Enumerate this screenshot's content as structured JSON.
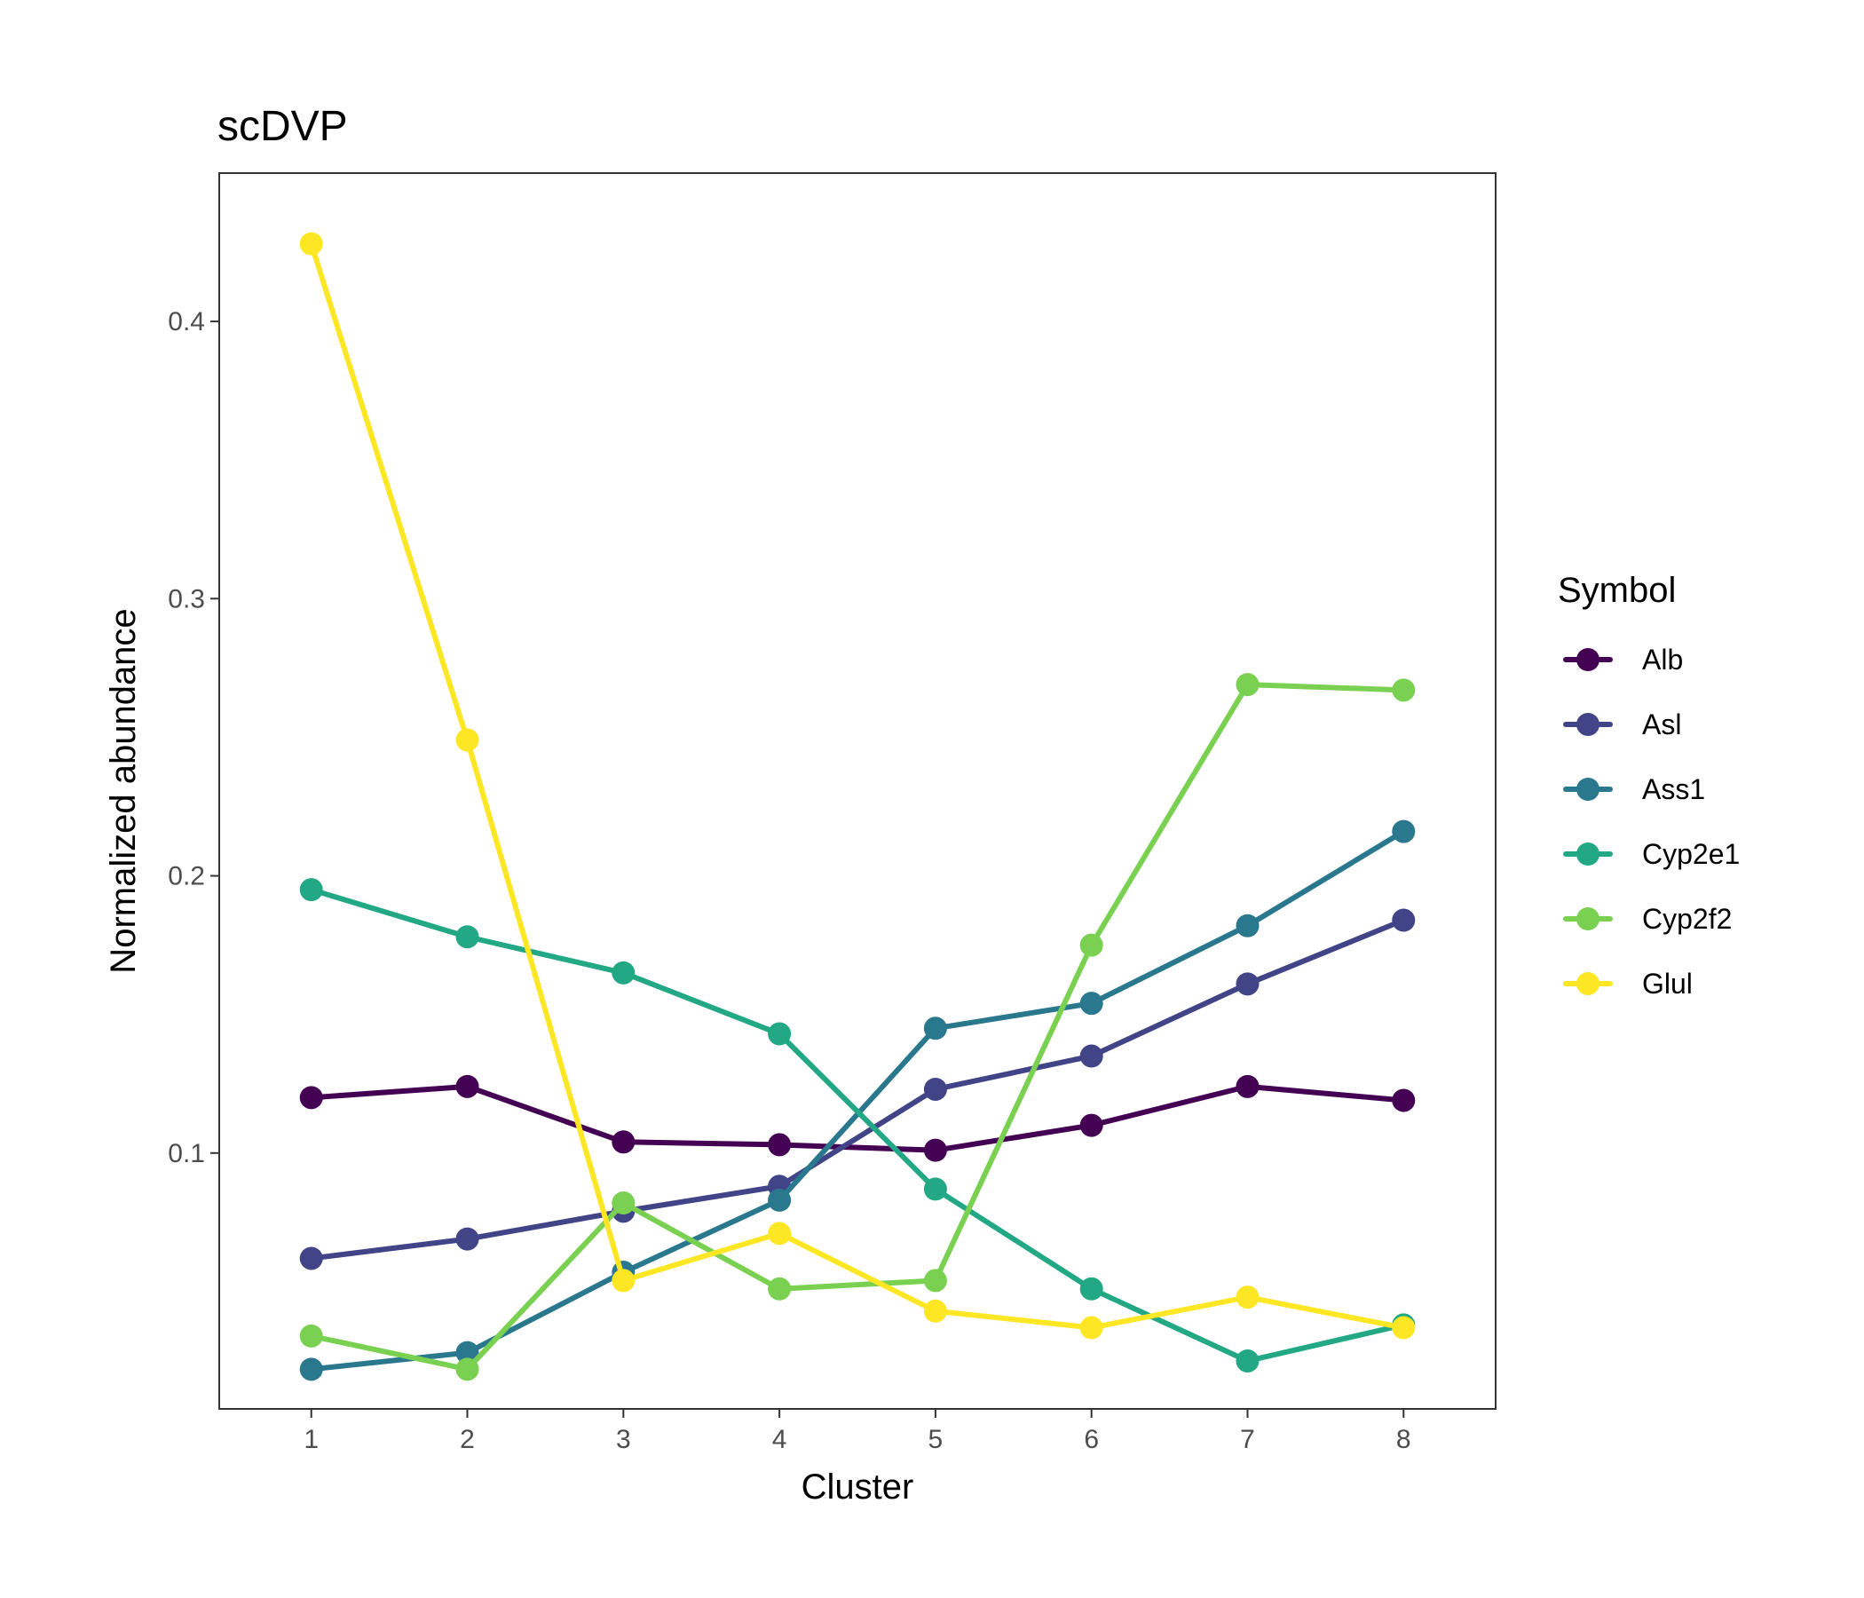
{
  "chart_data": {
    "type": "line",
    "title": "scDVP",
    "xlabel": "Cluster",
    "ylabel": "Normalized abundance",
    "x": [
      1,
      2,
      3,
      4,
      5,
      6,
      7,
      8
    ],
    "x_tick_labels": [
      "1",
      "2",
      "3",
      "4",
      "5",
      "6",
      "7",
      "8"
    ],
    "xlim": [
      0.41,
      8.59
    ],
    "y_ticks": [
      0.1,
      0.2,
      0.3,
      0.4
    ],
    "y_tick_labels": [
      "0.1",
      "0.2",
      "0.3",
      "0.4"
    ],
    "ylim": [
      0.0077,
      0.4535
    ],
    "grid": false,
    "legend": {
      "title": "Symbol",
      "placement": "right"
    },
    "series": [
      {
        "name": "Alb",
        "color": "#440154",
        "values": [
          0.12,
          0.124,
          0.104,
          0.103,
          0.101,
          0.11,
          0.124,
          0.119
        ]
      },
      {
        "name": "Asl",
        "color": "#414487",
        "values": [
          0.062,
          0.069,
          0.079,
          0.088,
          0.123,
          0.135,
          0.161,
          0.184
        ]
      },
      {
        "name": "Ass1",
        "color": "#2A788E",
        "values": [
          0.022,
          0.028,
          0.057,
          0.083,
          0.145,
          0.154,
          0.182,
          0.216
        ]
      },
      {
        "name": "Cyp2e1",
        "color": "#22A884",
        "values": [
          0.195,
          0.178,
          0.165,
          0.143,
          0.087,
          0.051,
          0.025,
          0.038
        ]
      },
      {
        "name": "Cyp2f2",
        "color": "#7AD151",
        "values": [
          0.034,
          0.022,
          0.082,
          0.051,
          0.054,
          0.175,
          0.269,
          0.267
        ]
      },
      {
        "name": "Glul",
        "color": "#FDE725",
        "values": [
          0.428,
          0.249,
          0.054,
          0.071,
          0.043,
          0.037,
          0.048,
          0.037
        ]
      }
    ]
  }
}
